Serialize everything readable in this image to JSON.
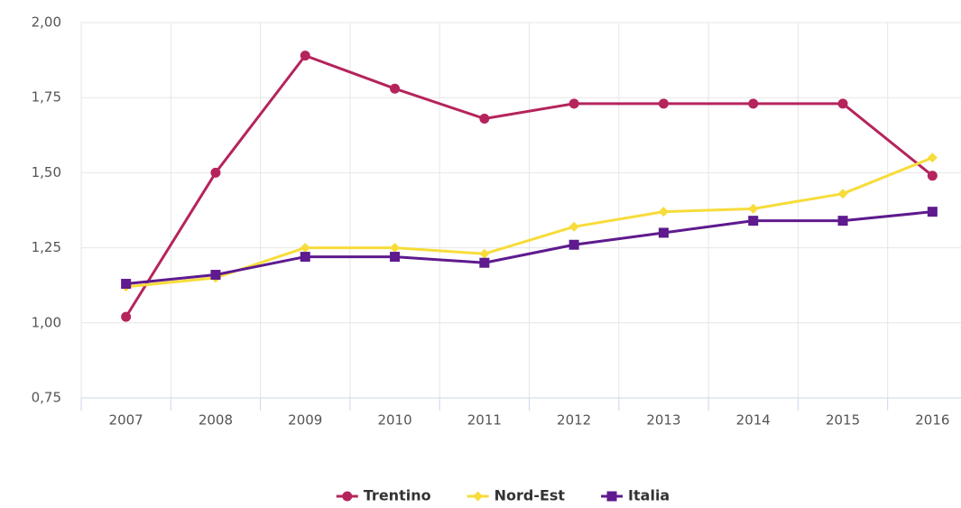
{
  "chart_data": {
    "type": "line",
    "categories": [
      "2007",
      "2008",
      "2009",
      "2010",
      "2011",
      "2012",
      "2013",
      "2014",
      "2015",
      "2016"
    ],
    "series": [
      {
        "name": "Trentino",
        "color": "#b5245c",
        "marker": "circle",
        "values": [
          1.02,
          1.5,
          1.89,
          1.78,
          1.68,
          1.73,
          1.73,
          1.73,
          1.73,
          1.49
        ]
      },
      {
        "name": "Nord-Est",
        "color": "#f7dc3a",
        "marker": "diamond",
        "values": [
          1.12,
          1.15,
          1.25,
          1.25,
          1.23,
          1.32,
          1.37,
          1.38,
          1.43,
          1.55
        ]
      },
      {
        "name": "Italia",
        "color": "#5e1a8e",
        "marker": "square",
        "values": [
          1.13,
          1.16,
          1.22,
          1.22,
          1.2,
          1.26,
          1.3,
          1.34,
          1.34,
          1.37
        ]
      }
    ],
    "ylim": [
      0.75,
      2.0
    ],
    "yticks": [
      {
        "value": 0.75,
        "label": "0,75"
      },
      {
        "value": 1.0,
        "label": "1,00"
      },
      {
        "value": 1.25,
        "label": "1,25"
      },
      {
        "value": 1.5,
        "label": "1,50"
      },
      {
        "value": 1.75,
        "label": "1,75"
      },
      {
        "value": 2.0,
        "label": "2,00"
      }
    ],
    "grid": true,
    "legend": "bottom"
  }
}
